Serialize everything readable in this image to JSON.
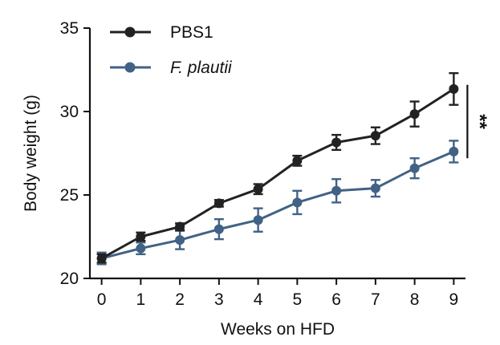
{
  "chart_data": {
    "type": "line",
    "title": "",
    "xlabel": "Weeks on HFD",
    "ylabel": "Body weight (g)",
    "x": [
      0,
      1,
      2,
      3,
      4,
      5,
      6,
      7,
      8,
      9
    ],
    "xlim": [
      -0.3,
      9.3
    ],
    "ylim": [
      20,
      35
    ],
    "x_ticks": [
      "0",
      "1",
      "2",
      "3",
      "4",
      "5",
      "6",
      "7",
      "8",
      "9"
    ],
    "y_ticks": [
      "20",
      "25",
      "30",
      "35"
    ],
    "legend_position": "top-left",
    "series": [
      {
        "name": "PBS1",
        "name_italic": false,
        "color": "#222222",
        "marker": "circle",
        "values": [
          21.2,
          22.5,
          23.1,
          24.5,
          25.35,
          27.05,
          28.15,
          28.55,
          29.85,
          31.35
        ],
        "errors": [
          0.25,
          0.25,
          0.2,
          0.2,
          0.3,
          0.3,
          0.45,
          0.5,
          0.75,
          0.95
        ]
      },
      {
        "name": "F. plautii",
        "name_italic": true,
        "color": "#416285",
        "marker": "circle",
        "values": [
          21.2,
          21.8,
          22.3,
          22.95,
          23.5,
          24.55,
          25.25,
          25.4,
          26.6,
          27.6
        ],
        "errors": [
          0.35,
          0.35,
          0.55,
          0.6,
          0.7,
          0.7,
          0.7,
          0.5,
          0.6,
          0.65
        ]
      }
    ],
    "annotation": {
      "text": "**",
      "x_from": 9,
      "range": [
        27.2,
        31.6
      ]
    }
  }
}
